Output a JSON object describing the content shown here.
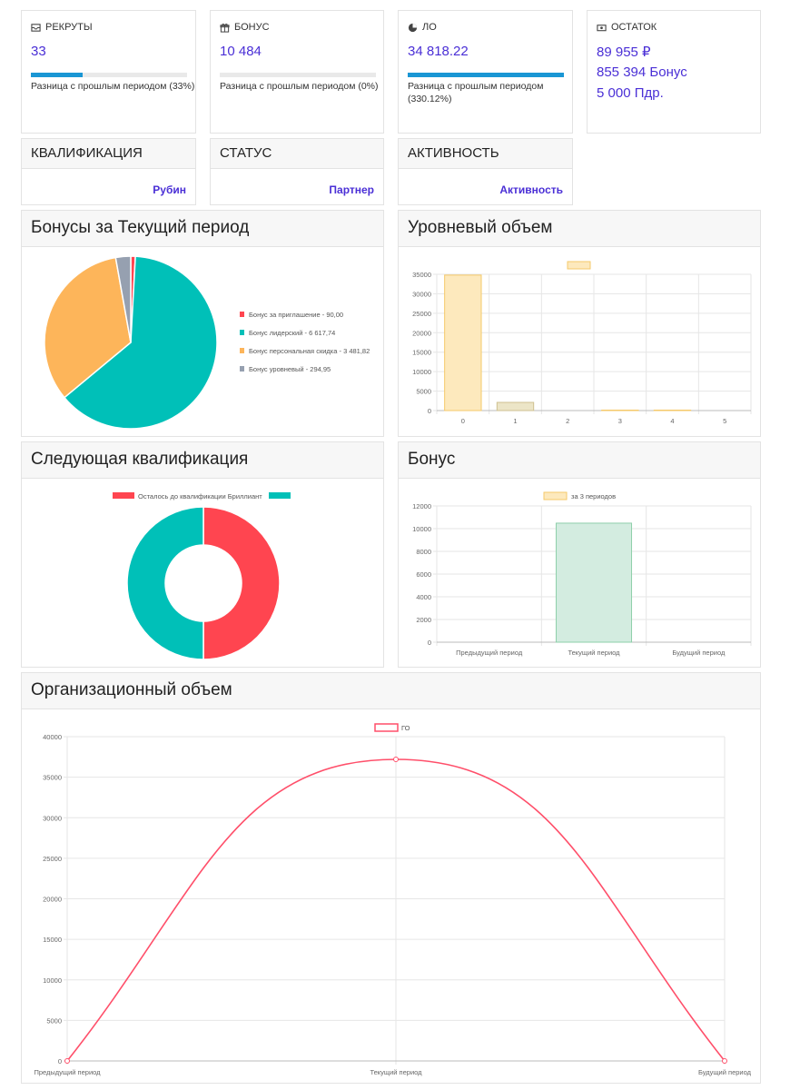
{
  "stats": {
    "recruits": {
      "label": "РЕКРУТЫ",
      "icon": "inbox-icon",
      "value": "33",
      "progress_percent": 33,
      "diff": "Разница с прошлым периодом (33%)"
    },
    "bonus": {
      "label": "БОНУС",
      "icon": "gift-icon",
      "value": "10 484",
      "progress_percent": 0,
      "diff": "Разница с прошлым периодом (0%)"
    },
    "lo": {
      "label": "ЛО",
      "icon": "pie-chart-icon",
      "value": "34 818.22",
      "progress_percent": 100,
      "diff_line1": "Разница с прошлым периодом",
      "diff_line2": "(330.12%)"
    },
    "balance": {
      "label": "ОСТАТОК",
      "icon": "money-icon",
      "line1": "89 955 ₽",
      "line2": "855 394 Бонус",
      "line3": "5 000 Пдр."
    }
  },
  "qualification": {
    "title": "КВАЛИФИКАЦИЯ",
    "value": "Рубин"
  },
  "status": {
    "title": "СТАТУС",
    "value": "Партнер"
  },
  "activity": {
    "title": "АКТИВНОСТЬ",
    "value": "Активность"
  },
  "panels": {
    "bonuses_current": "Бонусы за Текущий период",
    "level_volume": "Уровневый объем",
    "next_qualification": "Следующая квалификация",
    "bonus": "Бонус",
    "org_volume": "Организационный объем"
  },
  "colors": {
    "accent": "#4a2fd6",
    "progress": "#1a96d4",
    "red": "#ff4550",
    "teal": "#00c0b8",
    "orange": "#fdb55a",
    "gray": "#96a0b0"
  },
  "chart_data": [
    {
      "type": "pie",
      "title": "Бонусы за Текущий период",
      "labels": [
        "Бонус за приглашение - 90,00",
        "Бонус лидерский - 6 617,74",
        "Бонус персональная скидка - 3 481,82",
        "Бонус уровневый - 294,95"
      ],
      "values": [
        90.0,
        6617.74,
        3481.82,
        294.95
      ],
      "colors": [
        "#ff4550",
        "#00c0b8",
        "#fdb55a",
        "#96a0b0"
      ],
      "legend": "right"
    },
    {
      "type": "bar",
      "title": "Уровневый объем",
      "categories": [
        "0",
        "1",
        "2",
        "3",
        "4",
        "5"
      ],
      "values": [
        34800,
        2100,
        0,
        120,
        120,
        0
      ],
      "ylim": [
        0,
        35000
      ],
      "yticks": [
        "0",
        "5000",
        "10000",
        "15000",
        "20000",
        "25000",
        "30000",
        "35000"
      ],
      "legend": "top",
      "grid": true
    },
    {
      "type": "pie",
      "title": "Следующая квалификация",
      "labels": [
        "Осталось до квалификации Бриллиант",
        ""
      ],
      "values": [
        50,
        50
      ],
      "colors": [
        "#ff4550",
        "#00c0b8"
      ],
      "legend": "top"
    },
    {
      "type": "bar",
      "title": "Бонус",
      "categories": [
        "Предыдущий период",
        "Текущий период",
        "Будущий период"
      ],
      "series": [
        {
          "name": "за 3 периодов",
          "values": [
            0,
            10484,
            0
          ]
        }
      ],
      "ylim": [
        0,
        12000
      ],
      "yticks": [
        "0",
        "2000",
        "4000",
        "6000",
        "8000",
        "10000",
        "12000"
      ],
      "legend": "top",
      "grid": true
    },
    {
      "type": "line",
      "title": "Организационный объем",
      "categories": [
        "Предыдущий период",
        "Текущий период",
        "Будущий период"
      ],
      "series": [
        {
          "name": "ГО",
          "values": [
            0,
            37200,
            0
          ]
        }
      ],
      "ylim": [
        0,
        40000
      ],
      "yticks": [
        "0",
        "5000",
        "10000",
        "15000",
        "20000",
        "25000",
        "30000",
        "35000",
        "40000"
      ],
      "legend": "top",
      "grid": true
    }
  ]
}
